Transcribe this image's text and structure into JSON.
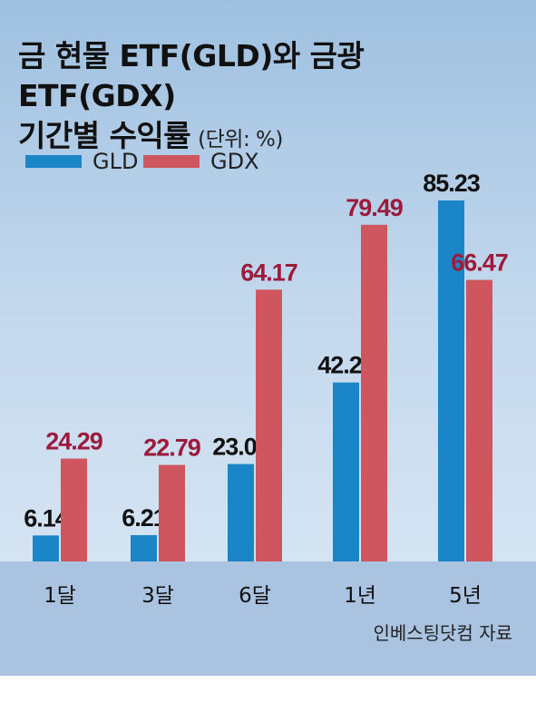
{
  "title": {
    "line1": "금 현물 ETF(GLD)와 금광 ETF(GDX)",
    "line2": "기간별 수익률",
    "unit": "(단위: %)"
  },
  "source": "인베스팅닷컴 자료",
  "colors": {
    "GLD": "#1a86c8",
    "GDX": "#cf565e",
    "gdx_label": "#9c1a3a",
    "gld_label": "#111111"
  },
  "chart_data": {
    "type": "bar",
    "categories": [
      "1달",
      "3달",
      "6달",
      "1년",
      "5년"
    ],
    "series": [
      {
        "name": "GLD",
        "values": [
          6.14,
          6.21,
          23.0,
          42.25,
          85.23
        ],
        "labels": [
          "6.14",
          "6.21",
          "23.00",
          "42.25",
          "85.23"
        ]
      },
      {
        "name": "GDX",
        "values": [
          24.29,
          22.79,
          64.17,
          79.49,
          66.47
        ],
        "labels": [
          "24.29",
          "22.79",
          "64.17",
          "79.49",
          "66.47"
        ]
      }
    ],
    "legend": "top-left",
    "grid": false
  }
}
